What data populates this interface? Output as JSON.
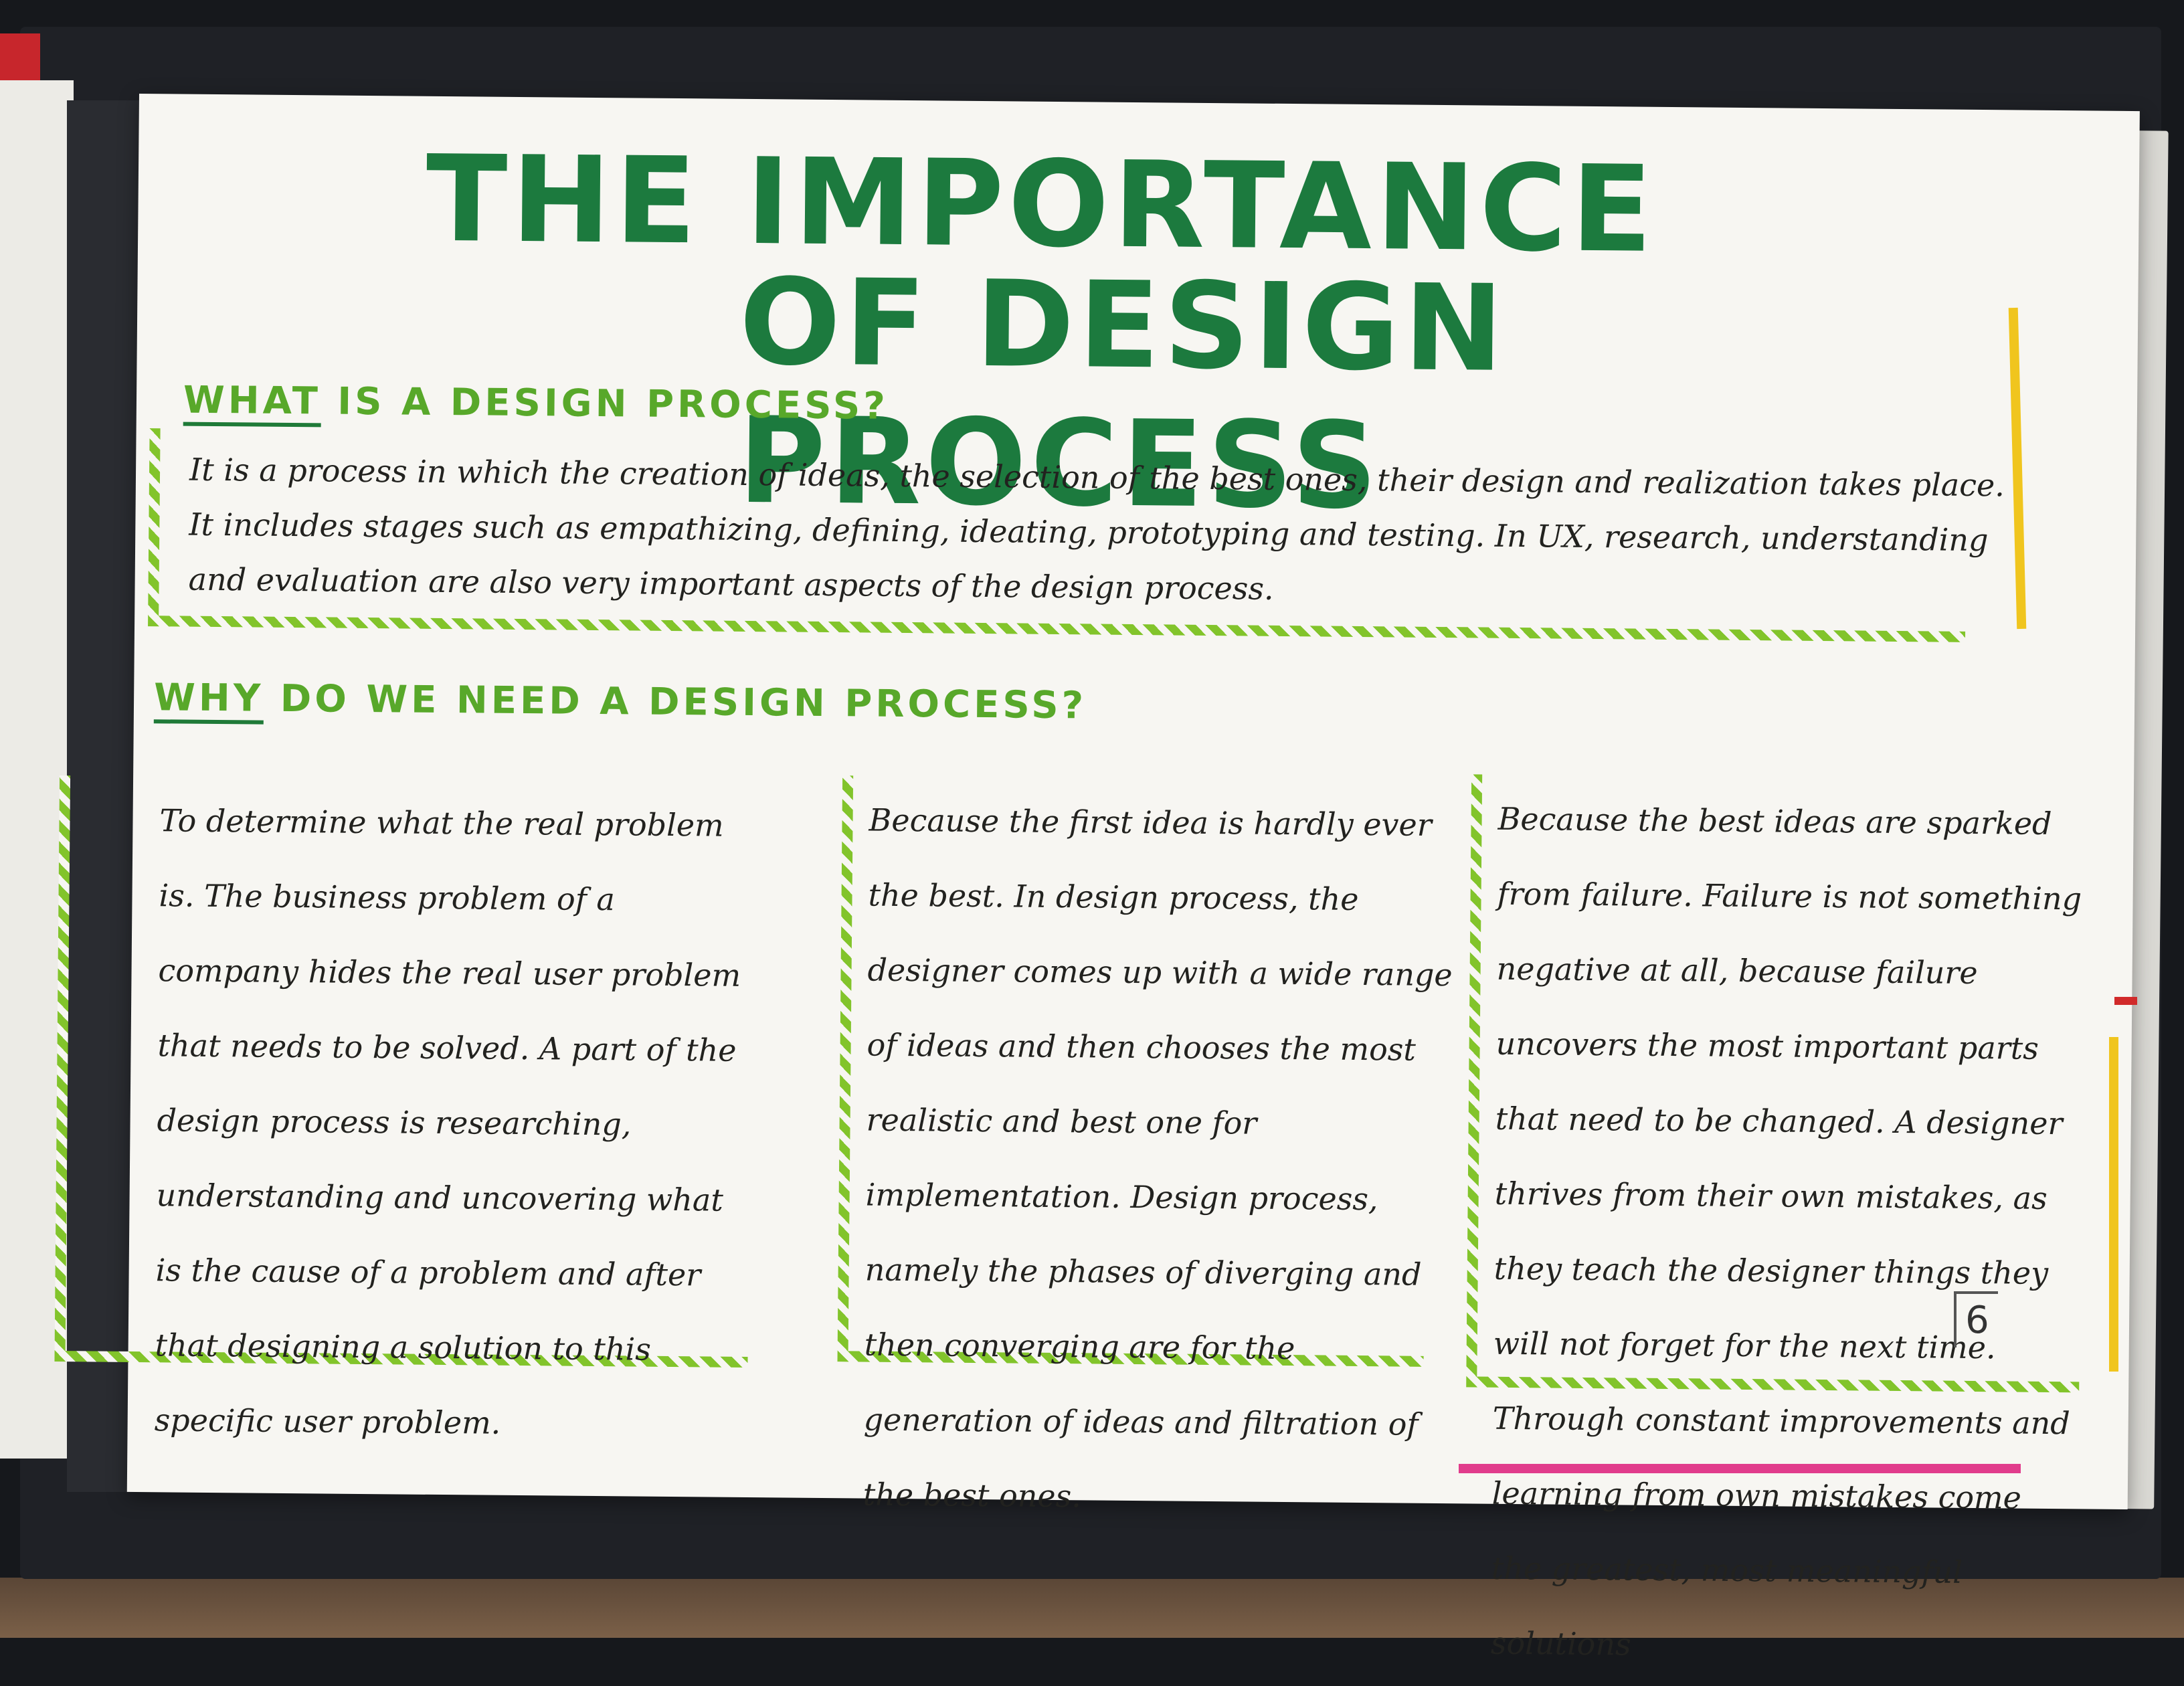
{
  "poster": {
    "title_line1": "THE IMPORTANCE",
    "title_line2": "OF DESIGN PROCESS",
    "section1": {
      "heading_lead": "WHAT",
      "heading_rest": "IS A DESIGN PROCESS?",
      "text": "It is a process in which the creation of ideas, the selection of the best ones, their design and realization takes place. It includes stages such as empathizing, defining, ideating, prototyping and testing. In UX, research, understanding and evaluation are also very important aspects of the design process."
    },
    "section2": {
      "heading_lead": "WHY",
      "heading_rest": "DO WE NEED A DESIGN PROCESS?",
      "col1": "To determine what the real problem is. The business problem of a company hides the real user problem that needs to be solved. A part of the design process is researching, understanding and uncovering what is the cause of a problem and after that designing a solution to this specific user problem.",
      "col2": "Because the first idea is hardly ever the best. In design process, the designer comes up with a wide range of ideas and then chooses the most realistic and best one for implementation. Design process, namely the phases of diverging and then converging are for the generation of ideas and filtration of the best ones.",
      "col3": "Because the best ideas are sparked from failure. Failure is not something negative at all, because failure uncovers the most important parts that need to be changed. A designer thrives from their own mistakes, as they teach the designer things they will not forget for the next time. Through constant improvements and learning from own mistakes come the greatest, most meaningful solutions"
    },
    "page_number": "6"
  }
}
